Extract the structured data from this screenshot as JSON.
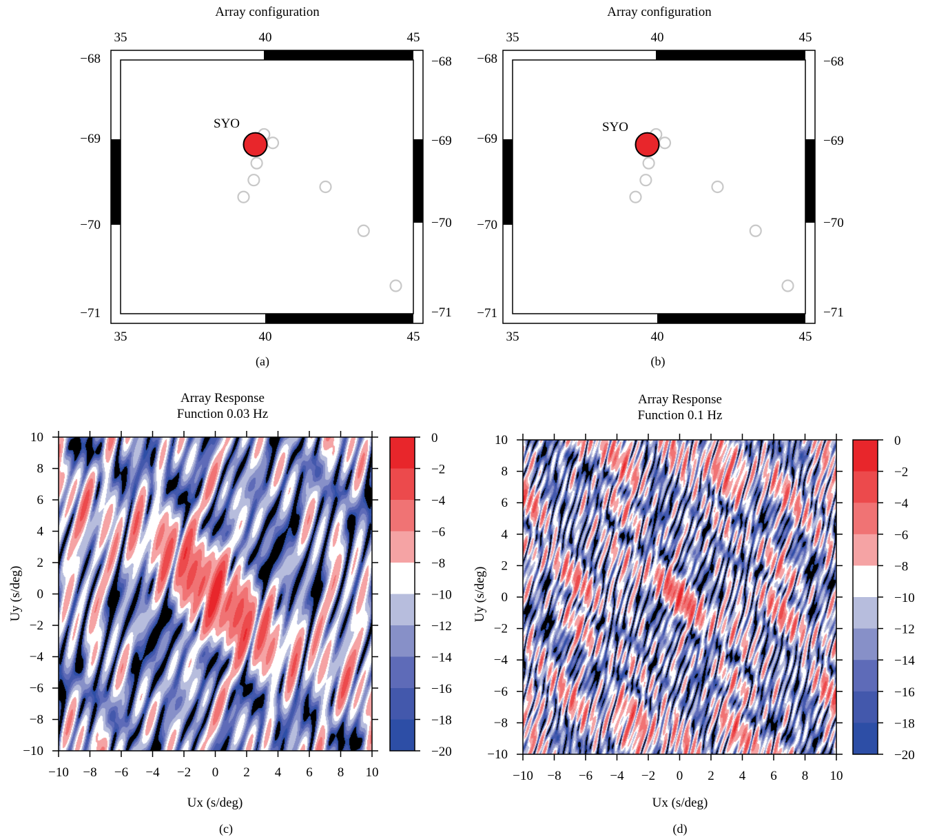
{
  "panels": [
    {
      "type": "map",
      "tag": "(a)",
      "title": "Array configuration",
      "xticks": [
        "35",
        "40",
        "45"
      ],
      "yticks": [
        "−68",
        "−69",
        "−70",
        "−71"
      ],
      "station_label": "SYO"
    },
    {
      "type": "map",
      "tag": "(b)",
      "title": "Array configuration",
      "xticks": [
        "35",
        "40",
        "45"
      ],
      "yticks": [
        "−68",
        "−69",
        "−70",
        "−71"
      ],
      "station_label": "SYO"
    },
    {
      "type": "heatmap",
      "tag": "(c)",
      "title_lines": [
        "Array Response",
        "Function 0.03 Hz"
      ],
      "xlabel": "Ux (s/deg)",
      "ylabel": "Uy (s/deg)",
      "xticks": [
        "−10",
        "−8",
        "−6",
        "−4",
        "−2",
        "0",
        "2",
        "4",
        "6",
        "8",
        "10"
      ],
      "yticks": [
        "10",
        "8",
        "6",
        "4",
        "2",
        "0",
        "−2",
        "−4",
        "−6",
        "−8",
        "−10"
      ],
      "cbar_ticks": [
        "0",
        "−2",
        "−4",
        "−6",
        "−8",
        "−10",
        "−12",
        "−14",
        "−16",
        "−18",
        "−20"
      ]
    },
    {
      "type": "heatmap",
      "tag": "(d)",
      "title_lines": [
        "Array Response",
        "Function 0.1 Hz"
      ],
      "xlabel": "Ux (s/deg)",
      "ylabel": "Uy (s/deg)",
      "xticks": [
        "−10",
        "−8",
        "−6",
        "−4",
        "−2",
        "0",
        "2",
        "4",
        "6",
        "8",
        "10"
      ],
      "yticks": [
        "10",
        "8",
        "6",
        "4",
        "2",
        "0",
        "−2",
        "−4",
        "−6",
        "−8",
        "−10"
      ],
      "cbar_ticks": [
        "0",
        "−2",
        "−4",
        "−6",
        "−8",
        "−10",
        "−12",
        "−14",
        "−16",
        "−18",
        "−20"
      ]
    }
  ],
  "chart_data": [
    {
      "type": "scatter",
      "panel": "(a)",
      "title": "Array configuration",
      "xlim": [
        35,
        45
      ],
      "ylim": [
        -71,
        -68
      ],
      "xlabel": "",
      "ylabel": "",
      "series": [
        {
          "name": "SYO",
          "x": [
            39.6
          ],
          "y": [
            -69.0
          ],
          "color": "#e8262b"
        },
        {
          "x": [
            39.9,
            40.2,
            39.65,
            39.55,
            39.2,
            42.0,
            43.3,
            44.4
          ],
          "y": [
            -68.88,
            -68.98,
            -69.22,
            -69.42,
            -69.62,
            -69.5,
            -70.02,
            -70.67
          ],
          "color": "#c8c8c8"
        }
      ]
    },
    {
      "type": "scatter",
      "panel": "(b)",
      "title": "Array configuration",
      "xlim": [
        35,
        45
      ],
      "ylim": [
        -71,
        -68
      ],
      "xlabel": "",
      "ylabel": "",
      "series": [
        {
          "name": "SYO",
          "x": [
            39.6
          ],
          "y": [
            -69.0
          ],
          "color": "#e8262b"
        },
        {
          "x": [
            39.9,
            40.2,
            39.65,
            39.55,
            39.2,
            42.0,
            43.3,
            44.4
          ],
          "y": [
            -68.88,
            -68.98,
            -69.22,
            -69.42,
            -69.62,
            -69.5,
            -70.02,
            -70.67
          ],
          "color": "#c8c8c8"
        }
      ]
    },
    {
      "type": "heatmap",
      "panel": "(c)",
      "title": "Array Response Function 0.03 Hz",
      "frequency_hz": 0.03,
      "xlabel": "Ux (s/deg)",
      "ylabel": "Uy (s/deg)",
      "xlim": [
        -10,
        10
      ],
      "ylim": [
        -10,
        10
      ],
      "zlim": [
        -20,
        0
      ],
      "levels": [
        0,
        -2,
        -4,
        -6,
        -8,
        -10,
        -12,
        -14,
        -16,
        -18,
        -20
      ],
      "peak": {
        "x": 0,
        "y": 0,
        "value": 0
      }
    },
    {
      "type": "heatmap",
      "panel": "(d)",
      "title": "Array Response Function 0.1 Hz",
      "frequency_hz": 0.1,
      "xlabel": "Ux (s/deg)",
      "ylabel": "Uy (s/deg)",
      "xlim": [
        -10,
        10
      ],
      "ylim": [
        -10,
        10
      ],
      "zlim": [
        -20,
        0
      ],
      "levels": [
        0,
        -2,
        -4,
        -6,
        -8,
        -10,
        -12,
        -14,
        -16,
        -18,
        -20
      ],
      "peak": {
        "x": 0,
        "y": 0,
        "value": 0
      }
    }
  ],
  "colors": {
    "colorbar": [
      "#e8262b",
      "#ec4a4c",
      "#f07374",
      "#f5a3a4",
      "#ffffff",
      "#b7bddd",
      "#8790c8",
      "#5e6bb8",
      "#4358ac",
      "#2d4ea6"
    ],
    "below_min": "#000000",
    "station": "#e8262b",
    "array_site": "#c8c8c8"
  }
}
